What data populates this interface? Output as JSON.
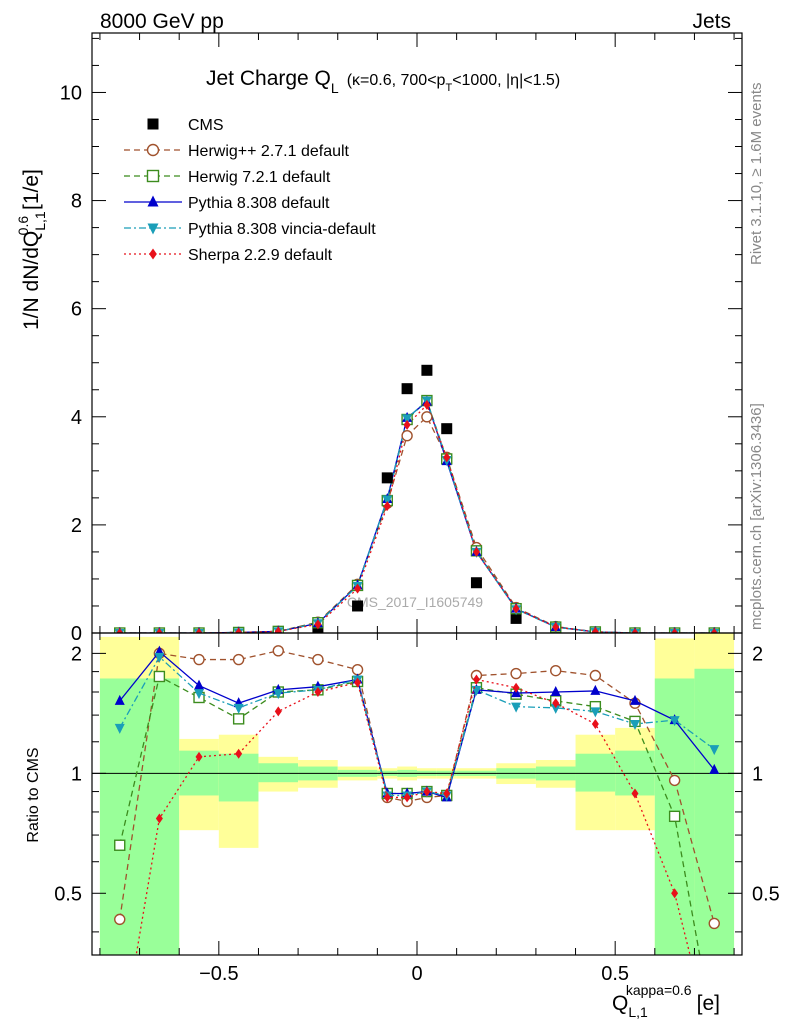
{
  "header": {
    "left_label": "8000 GeV pp",
    "right_label": "Jets",
    "side_label_top": "Rivet 3.1.10, ≥ 1.6M events",
    "side_label_bottom": "mcplots.cern.ch [arXiv:1306.3436]",
    "watermark": "CMS_2017_I1605749"
  },
  "chart_data": [
    {
      "type": "scatter",
      "panel": "main",
      "title_main": "Jet Charge Q",
      "title_sub": "L",
      "title_cuts": "(κ=0.6, 700<p",
      "title_cuts_sub": "T",
      "title_cuts_end": "<1000, |η|<1.5)",
      "ylabel_prefix": "1/N dN/dQ",
      "ylabel_sup": "0.6",
      "ylabel_sub": "L,1",
      "ylabel_suffix": " [1/e]",
      "xlim": [
        -0.82,
        0.82
      ],
      "ylim": [
        0,
        11.1
      ],
      "y_ticks": [
        0,
        2,
        4,
        6,
        8,
        10
      ],
      "y_tick_labels": [
        "0",
        "2",
        "4",
        "6",
        "8",
        "10"
      ],
      "legend_position": "top-left",
      "x": [
        -0.75,
        -0.65,
        -0.55,
        -0.45,
        -0.35,
        -0.25,
        -0.15,
        -0.075,
        -0.025,
        0.025,
        0.075,
        0.15,
        0.25,
        0.35,
        0.45,
        0.55,
        0.65,
        0.75
      ],
      "series": [
        {
          "name": "CMS",
          "color": "#000000",
          "marker": "square-filled",
          "line": "none",
          "values": [
            0.0,
            0.0,
            0.0,
            0.0,
            0.0,
            0.05,
            0.5,
            2.87,
            4.52,
            4.86,
            3.78,
            0.93,
            0.27,
            0.07,
            0.01,
            0.0,
            0.0,
            0.0
          ]
        },
        {
          "name": "Herwig++ 2.7.1 default",
          "color": "#a0522d",
          "marker": "circle-open",
          "line": "dashed",
          "values": [
            0.0,
            0.0,
            0.0,
            0.01,
            0.03,
            0.2,
            0.9,
            2.4,
            3.65,
            4.0,
            3.25,
            1.58,
            0.47,
            0.12,
            0.02,
            0.0,
            0.0,
            0.0
          ]
        },
        {
          "name": "Herwig 7.2.1 default",
          "color": "#3c8c1e",
          "marker": "square-open",
          "line": "dashed",
          "values": [
            0.0,
            0.0,
            0.0,
            0.01,
            0.03,
            0.19,
            0.88,
            2.45,
            3.95,
            4.3,
            3.22,
            1.52,
            0.45,
            0.11,
            0.02,
            0.0,
            0.0,
            0.0
          ]
        },
        {
          "name": "Pythia 8.308 default",
          "color": "#0000cc",
          "marker": "triangle-up",
          "line": "solid",
          "values": [
            0.0,
            0.0,
            0.0,
            0.01,
            0.03,
            0.18,
            0.88,
            2.48,
            3.98,
            4.28,
            3.18,
            1.5,
            0.45,
            0.11,
            0.02,
            0.0,
            0.0,
            0.0
          ]
        },
        {
          "name": "Pythia 8.308 vincia-default",
          "color": "#1a9eb8",
          "marker": "triangle-down",
          "line": "dashdot",
          "values": [
            0.0,
            0.0,
            0.0,
            0.01,
            0.03,
            0.18,
            0.87,
            2.47,
            3.97,
            4.3,
            3.2,
            1.5,
            0.44,
            0.11,
            0.02,
            0.0,
            0.0,
            0.0
          ]
        },
        {
          "name": "Sherpa 2.2.9 default",
          "color": "#e8101a",
          "marker": "diamond",
          "line": "dotted",
          "values": [
            0.0,
            0.0,
            0.0,
            0.01,
            0.03,
            0.16,
            0.82,
            2.35,
            3.85,
            4.22,
            3.25,
            1.5,
            0.45,
            0.11,
            0.02,
            0.0,
            0.0,
            0.0
          ]
        }
      ]
    },
    {
      "type": "line",
      "panel": "ratio",
      "ylabel": "Ratio to CMS",
      "xlabel_main": "Q",
      "xlabel_sub": "L,1",
      "xlabel_sup": "kappa=0.6",
      "xlabel_unit": "[e]",
      "xlim": [
        -0.82,
        0.82
      ],
      "ylim": [
        0.35,
        2.25
      ],
      "x_ticks": [
        -0.5,
        0,
        0.5
      ],
      "x_tick_labels": [
        "−0.5",
        "0",
        "0.5"
      ],
      "y_ticks": [
        0.5,
        1,
        2
      ],
      "y_tick_labels": [
        "0.5",
        "1",
        "2"
      ],
      "reference_line": 1,
      "bands": [
        {
          "x_low": -0.8,
          "x_high": -0.6,
          "yellow": [
            0.35,
            2.2
          ],
          "green": [
            0.35,
            1.73
          ]
        },
        {
          "x_low": -0.6,
          "x_high": -0.5,
          "yellow": [
            0.72,
            1.22
          ],
          "green": [
            0.88,
            1.14
          ]
        },
        {
          "x_low": -0.5,
          "x_high": -0.4,
          "yellow": [
            0.65,
            1.25
          ],
          "green": [
            0.85,
            1.12
          ]
        },
        {
          "x_low": -0.4,
          "x_high": -0.3,
          "yellow": [
            0.9,
            1.1
          ],
          "green": [
            0.95,
            1.06
          ]
        },
        {
          "x_low": -0.3,
          "x_high": -0.2,
          "yellow": [
            0.92,
            1.08
          ],
          "green": [
            0.96,
            1.04
          ]
        },
        {
          "x_low": -0.2,
          "x_high": -0.1,
          "yellow": [
            0.96,
            1.04
          ],
          "green": [
            0.98,
            1.02
          ]
        },
        {
          "x_low": -0.1,
          "x_high": -0.05,
          "yellow": [
            0.97,
            1.03
          ],
          "green": [
            0.985,
            1.015
          ]
        },
        {
          "x_low": -0.05,
          "x_high": 0.0,
          "yellow": [
            0.96,
            1.04
          ],
          "green": [
            0.98,
            1.02
          ]
        },
        {
          "x_low": 0.0,
          "x_high": 0.05,
          "yellow": [
            0.97,
            1.03
          ],
          "green": [
            0.985,
            1.015
          ]
        },
        {
          "x_low": 0.05,
          "x_high": 0.1,
          "yellow": [
            0.97,
            1.03
          ],
          "green": [
            0.985,
            1.015
          ]
        },
        {
          "x_low": 0.1,
          "x_high": 0.2,
          "yellow": [
            0.97,
            1.03
          ],
          "green": [
            0.985,
            1.015
          ]
        },
        {
          "x_low": 0.2,
          "x_high": 0.3,
          "yellow": [
            0.94,
            1.06
          ],
          "green": [
            0.97,
            1.03
          ]
        },
        {
          "x_low": 0.3,
          "x_high": 0.4,
          "yellow": [
            0.92,
            1.08
          ],
          "green": [
            0.96,
            1.04
          ]
        },
        {
          "x_low": 0.4,
          "x_high": 0.5,
          "yellow": [
            0.72,
            1.25
          ],
          "green": [
            0.9,
            1.12
          ]
        },
        {
          "x_low": 0.5,
          "x_high": 0.6,
          "yellow": [
            0.72,
            1.3
          ],
          "green": [
            0.88,
            1.14
          ]
        },
        {
          "x_low": 0.6,
          "x_high": 0.7,
          "yellow": [
            0.35,
            2.18
          ],
          "green": [
            0.35,
            1.73
          ]
        },
        {
          "x_low": 0.7,
          "x_high": 0.8,
          "yellow": [
            0.35,
            2.25
          ],
          "green": [
            0.35,
            1.83
          ]
        }
      ],
      "x": [
        -0.75,
        -0.65,
        -0.55,
        -0.45,
        -0.35,
        -0.25,
        -0.15,
        -0.075,
        -0.025,
        0.025,
        0.075,
        0.15,
        0.25,
        0.35,
        0.45,
        0.55,
        0.65,
        0.75
      ],
      "series": [
        {
          "name": "Herwig++ 2.7.1 default",
          "color": "#a0522d",
          "marker": "circle-open",
          "line": "dashed",
          "values": [
            0.43,
            2.0,
            1.93,
            1.93,
            2.03,
            1.93,
            1.82,
            0.87,
            0.85,
            0.87,
            0.88,
            1.76,
            1.78,
            1.81,
            1.76,
            1.5,
            0.96,
            0.42
          ]
        },
        {
          "name": "Herwig 7.2.1 default",
          "color": "#3c8c1e",
          "marker": "square-open",
          "line": "dashed",
          "values": [
            0.66,
            1.75,
            1.55,
            1.37,
            1.6,
            1.62,
            1.7,
            0.89,
            0.89,
            0.9,
            0.88,
            1.64,
            1.58,
            1.52,
            1.47,
            1.35,
            0.78,
            0.22
          ]
        },
        {
          "name": "Pythia 8.308 default",
          "color": "#0000cc",
          "marker": "triangle-up",
          "line": "solid",
          "values": [
            1.52,
            2.02,
            1.66,
            1.5,
            1.62,
            1.65,
            1.72,
            0.89,
            0.89,
            0.9,
            0.87,
            1.62,
            1.59,
            1.6,
            1.61,
            1.52,
            1.36,
            1.02
          ]
        },
        {
          "name": "Pythia 8.308 vincia-default",
          "color": "#1a9eb8",
          "marker": "triangle-down",
          "line": "dashdot",
          "values": [
            1.3,
            1.96,
            1.59,
            1.46,
            1.59,
            1.62,
            1.72,
            0.88,
            0.88,
            0.9,
            0.88,
            1.62,
            1.47,
            1.46,
            1.43,
            1.33,
            1.36,
            1.15
          ]
        },
        {
          "name": "Sherpa 2.2.9 default",
          "color": "#e8101a",
          "marker": "diamond",
          "line": "dotted",
          "values": [
            0.2,
            0.77,
            1.1,
            1.12,
            1.43,
            1.6,
            1.69,
            0.87,
            0.87,
            0.9,
            0.89,
            1.72,
            1.64,
            1.5,
            1.33,
            0.89,
            0.5,
            0.2
          ]
        }
      ]
    }
  ]
}
